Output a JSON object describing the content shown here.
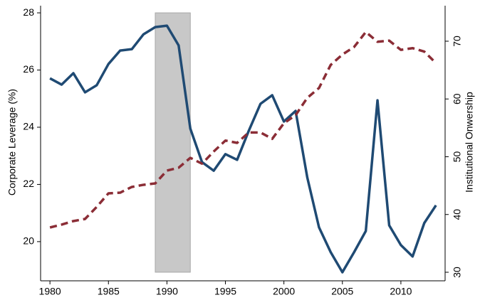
{
  "chart_data": {
    "type": "line",
    "ylabel": "Corporate Leverage (%)",
    "y2label": "Institutional Onwership",
    "x": [
      1980,
      1981,
      1982,
      1983,
      1984,
      1985,
      1986,
      1987,
      1988,
      1989,
      1990,
      1991,
      1992,
      1993,
      1994,
      1995,
      1996,
      1997,
      1998,
      1999,
      2000,
      2001,
      2002,
      2003,
      2004,
      2005,
      2006,
      2007,
      2008,
      2009,
      2010,
      2011,
      2012,
      2013
    ],
    "series": [
      {
        "color": "#1f4a73",
        "style": "solid",
        "values": [
          25.71,
          25.49,
          25.89,
          25.22,
          25.47,
          26.21,
          26.68,
          26.73,
          27.25,
          27.5,
          27.55,
          26.86,
          23.95,
          22.78,
          22.48,
          23.06,
          22.86,
          23.88,
          24.82,
          25.12,
          24.2,
          24.57,
          22.24,
          20.5,
          19.63,
          18.93,
          19.63,
          20.37,
          24.94,
          20.57,
          19.88,
          19.48,
          20.65,
          21.27
        ]
      },
      {
        "color": "#8b2d36",
        "style": "dashed",
        "axis": "y2",
        "values": [
          37.75,
          38.25,
          38.86,
          39.23,
          41.32,
          43.66,
          43.78,
          44.77,
          45.14,
          45.38,
          47.6,
          48.1,
          49.8,
          48.8,
          50.9,
          52.8,
          52.4,
          54.2,
          54.2,
          53.1,
          55.8,
          57.2,
          60.2,
          61.9,
          65.9,
          67.7,
          69.0,
          71.6,
          69.9,
          70.1,
          68.5,
          68.8,
          68.2,
          66.2
        ]
      }
    ],
    "shade": {
      "xlim": [
        1989,
        1992
      ],
      "ylim": [
        18.93,
        28
      ],
      "color": "#c8c8c8"
    },
    "xlim": [
      1979.2,
      2013.78
    ],
    "xticks": [
      1980,
      1985,
      1990,
      1995,
      2000,
      2005,
      2010
    ],
    "ylim": [
      18.63,
      28.25
    ],
    "yticks": [
      20,
      22,
      24,
      26,
      28
    ],
    "y2lim": [
      28.52,
      76.15
    ],
    "y2ticks": [
      30,
      40,
      50,
      60,
      70
    ],
    "grid": false
  }
}
